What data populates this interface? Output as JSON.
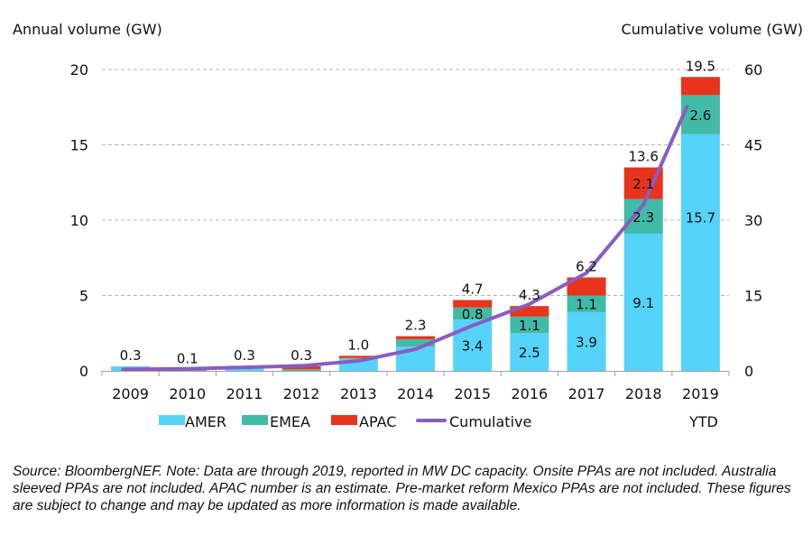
{
  "chart_data": {
    "type": "bar",
    "stacked": true,
    "title": "",
    "ylabel": "Annual volume (GW)",
    "y2label": "Cumulative volume (GW)",
    "xlabel": "",
    "categories": [
      "2009",
      "2010",
      "2011",
      "2012",
      "2013",
      "2014",
      "2015",
      "2016",
      "2017",
      "2018",
      "2019"
    ],
    "ylim": [
      0,
      20
    ],
    "y2lim": [
      0,
      60
    ],
    "yticks": [
      0,
      5,
      10,
      15,
      20
    ],
    "y2ticks": [
      0,
      15,
      30,
      45,
      60
    ],
    "grid": true,
    "series": [
      {
        "name": "AMER",
        "color": "#55d3fb",
        "values": [
          0.3,
          0.0,
          0.2,
          0.0,
          0.8,
          1.6,
          3.4,
          2.5,
          3.9,
          9.1,
          15.7
        ]
      },
      {
        "name": "EMEA",
        "color": "#41bba7",
        "values": [
          0.0,
          0.05,
          0.1,
          0.1,
          0.05,
          0.5,
          0.8,
          1.1,
          1.1,
          2.3,
          2.6
        ]
      },
      {
        "name": "APAC",
        "color": "#e8341c",
        "values": [
          0.0,
          0.05,
          0.0,
          0.2,
          0.15,
          0.2,
          0.5,
          0.7,
          1.2,
          2.1,
          1.2
        ]
      }
    ],
    "line_series": {
      "name": "Cumulative",
      "axis": "right",
      "color": "#8a5cc0",
      "values": [
        0.3,
        0.4,
        0.7,
        1.0,
        2.0,
        4.3,
        9.0,
        13.3,
        19.5,
        33.1,
        52.6
      ]
    },
    "totals": [
      "0.3",
      "0.1",
      "0.3",
      "0.3",
      "1.0",
      "2.3",
      "4.7",
      "4.3",
      "6.2",
      "13.6",
      "19.5"
    ],
    "segment_labels": [
      {
        "category": "2015",
        "series": "AMER",
        "text": "3.4"
      },
      {
        "category": "2015",
        "series": "EMEA",
        "text": "0.8"
      },
      {
        "category": "2016",
        "series": "AMER",
        "text": "2.5"
      },
      {
        "category": "2016",
        "series": "EMEA",
        "text": "1.1"
      },
      {
        "category": "2017",
        "series": "AMER",
        "text": "3.9"
      },
      {
        "category": "2017",
        "series": "EMEA",
        "text": "1.1"
      },
      {
        "category": "2018",
        "series": "AMER",
        "text": "9.1"
      },
      {
        "category": "2018",
        "series": "EMEA",
        "text": "2.3"
      },
      {
        "category": "2018",
        "series": "APAC",
        "text": "2.1"
      },
      {
        "category": "2019",
        "series": "AMER",
        "text": "15.7"
      },
      {
        "category": "2019",
        "series": "EMEA",
        "text": "2.6"
      }
    ],
    "legend": [
      "AMER",
      "EMEA",
      "APAC",
      "Cumulative",
      "YTD"
    ],
    "legend_position": "bottom"
  },
  "note": "Source: BloombergNEF. Note: Data are through 2019, reported in MW DC capacity. Onsite PPAs are not included. Australia sleeved PPAs are not included. APAC number is an estimate. Pre-market reform Mexico PPAs are not included. These figures are subject to change and may be updated as more information is made available."
}
